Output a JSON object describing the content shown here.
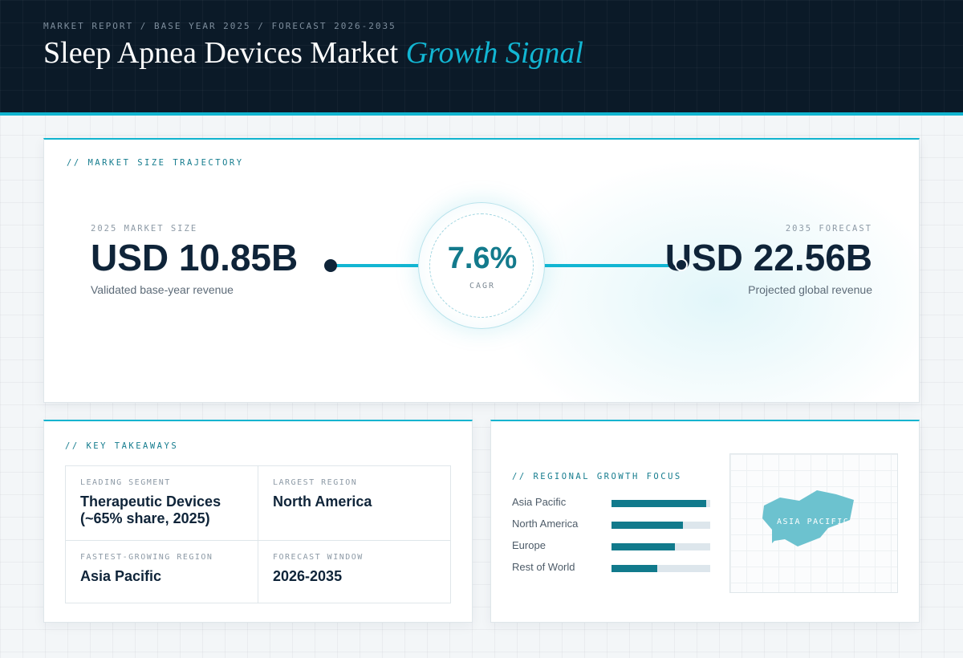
{
  "header": {
    "eyebrow": "MARKET REPORT / BASE YEAR 2025 / FORECAST 2026-2035",
    "title_main": "Sleep Apnea Devices Market",
    "title_accent": "Growth Signal"
  },
  "trajectory": {
    "section_label": "// MARKET SIZE TRAJECTORY",
    "start": {
      "label": "2025 MARKET SIZE",
      "value": "USD 10.85B",
      "caption": "Validated base-year revenue"
    },
    "cagr": {
      "value": "7.6%",
      "label": "CAGR"
    },
    "end": {
      "label": "2035 FORECAST",
      "value": "USD 22.56B",
      "caption": "Projected global revenue"
    }
  },
  "takeaways": {
    "section_label": "// KEY TAKEAWAYS",
    "items": [
      {
        "label": "LEADING SEGMENT",
        "value": "Therapeutic Devices (~65% share, 2025)"
      },
      {
        "label": "LARGEST REGION",
        "value": "North America"
      },
      {
        "label": "FASTEST-GROWING REGION",
        "value": "Asia Pacific"
      },
      {
        "label": "FORECAST WINDOW",
        "value": "2026-2035"
      }
    ]
  },
  "regional": {
    "section_label": "// REGIONAL GROWTH FOCUS",
    "bars": [
      {
        "name": "Asia Pacific",
        "fraction": 0.96
      },
      {
        "name": "North America",
        "fraction": 0.72
      },
      {
        "name": "Europe",
        "fraction": 0.64
      },
      {
        "name": "Rest of World",
        "fraction": 0.46
      }
    ],
    "map_label": "ASIA PACIFIC"
  },
  "colors": {
    "accent": "#12b6d3",
    "teal_dark": "#117a8c",
    "navy": "#0f2439",
    "header_bg": "#0b1a28",
    "map_fill": "#6cc2cf"
  }
}
